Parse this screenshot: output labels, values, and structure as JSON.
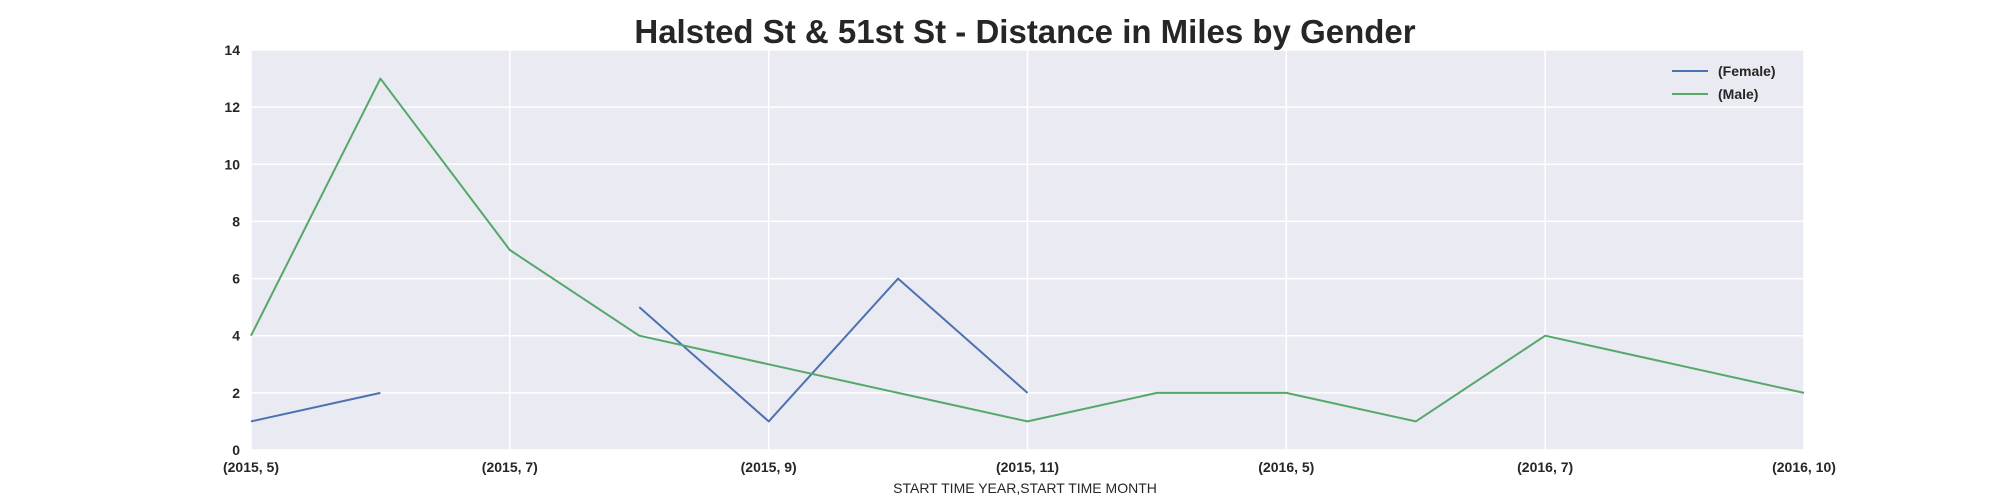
{
  "chart_data": {
    "type": "line",
    "title": "Halsted St & 51st St - Distance in Miles by Gender",
    "xlabel": "START TIME YEAR,START TIME MONTH",
    "ylabel": "",
    "categories": [
      "(2015, 5)",
      "(2015, 6)",
      "(2015, 7)",
      "(2015, 8)",
      "(2015, 9)",
      "(2015, 10)",
      "(2015, 11)",
      "(2015, 12)",
      "(2016, 5)",
      "(2016, 6)",
      "(2016, 7)",
      "(2016, 8)",
      "(2016, 10)"
    ],
    "tick_labels": [
      "(2015, 5)",
      "(2015, 7)",
      "(2015, 9)",
      "(2015, 11)",
      "(2016, 5)",
      "(2016, 7)",
      "(2016, 10)"
    ],
    "tick_label_indices": [
      0,
      2,
      4,
      6,
      8,
      10,
      12
    ],
    "series": [
      {
        "name": "(Female)",
        "color": "#4c72b0",
        "values": [
          1,
          2,
          null,
          5,
          1,
          6,
          2,
          null,
          null,
          null,
          null,
          null,
          null
        ]
      },
      {
        "name": "(Male)",
        "color": "#55a868",
        "values": [
          4,
          13,
          7,
          4,
          3,
          2,
          1,
          2,
          2,
          1,
          4,
          3,
          2
        ]
      }
    ],
    "ylim": [
      0,
      14
    ],
    "yticks": [
      "0",
      "2",
      "4",
      "6",
      "8",
      "10",
      "12",
      "14"
    ],
    "grid": true,
    "legend_position": "top-right",
    "background_color": "#eaeaf2",
    "grid_color": "#ffffff"
  }
}
